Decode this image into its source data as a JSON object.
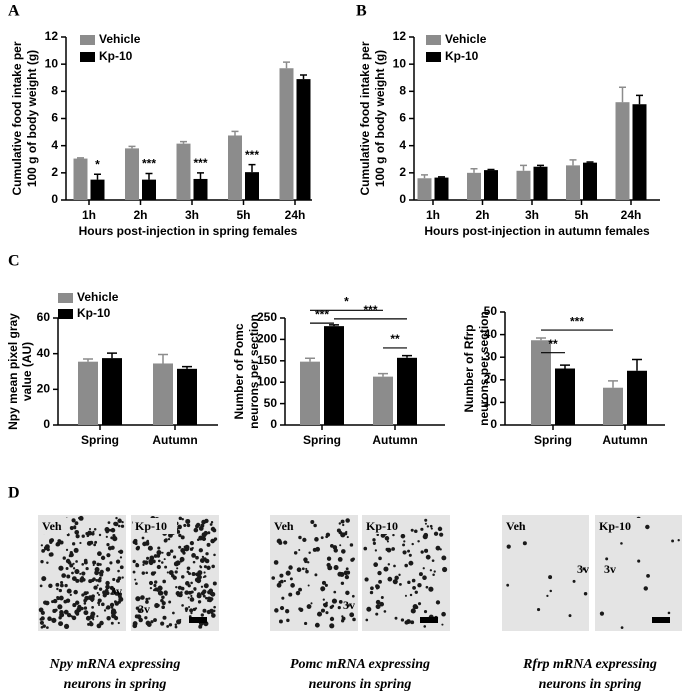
{
  "panel_labels": [
    "A",
    "B",
    "C",
    "D"
  ],
  "chart_data": [
    {
      "type": "bar",
      "ylabel_lines": [
        "Cumulative food intake per",
        "100 g of body weight (g)"
      ],
      "xlabel": "Hours post-injection in spring females",
      "categories": [
        "1h",
        "2h",
        "3h",
        "5h",
        "24h"
      ],
      "series": [
        {
          "name": "Vehicle",
          "color": "#8c8c8c",
          "values": [
            3.05,
            3.8,
            4.15,
            4.75,
            9.7
          ],
          "errors": [
            0.05,
            0.15,
            0.15,
            0.3,
            0.45
          ]
        },
        {
          "name": "Kp-10",
          "color": "#000000",
          "values": [
            1.5,
            1.5,
            1.55,
            2.05,
            8.9
          ],
          "errors": [
            0.4,
            0.45,
            0.45,
            0.55,
            0.3
          ],
          "significance": [
            "*",
            "***",
            "***",
            "***",
            null
          ]
        }
      ],
      "ylim": [
        0,
        12
      ],
      "yticks": [
        0,
        2,
        4,
        6,
        8,
        10,
        12
      ],
      "legend": "upper left"
    },
    {
      "type": "bar",
      "ylabel_lines": [
        "Cumulative food intake per",
        "100 g of body weight (g)"
      ],
      "xlabel": "Hours post-injection in autumn females",
      "categories": [
        "1h",
        "2h",
        "3h",
        "5h",
        "24h"
      ],
      "series": [
        {
          "name": "Vehicle",
          "color": "#8c8c8c",
          "values": [
            1.6,
            2.0,
            2.15,
            2.55,
            7.2
          ],
          "errors": [
            0.25,
            0.3,
            0.4,
            0.4,
            1.1
          ]
        },
        {
          "name": "Kp-10",
          "color": "#000000",
          "values": [
            1.65,
            2.2,
            2.45,
            2.75,
            7.05
          ],
          "errors": [
            0.05,
            0.05,
            0.1,
            0.05,
            0.65
          ]
        }
      ],
      "ylim": [
        0,
        12
      ],
      "yticks": [
        0,
        2,
        4,
        6,
        8,
        10,
        12
      ],
      "legend": "upper left"
    },
    {
      "type": "bar",
      "ylabel_lines": [
        "Npy mean pixel gray",
        "value (AU)"
      ],
      "categories": [
        "Spring",
        "Autumn"
      ],
      "series": [
        {
          "name": "Vehicle",
          "color": "#8c8c8c",
          "values": [
            35.5,
            34.5
          ],
          "errors": [
            1.5,
            5
          ]
        },
        {
          "name": "Kp-10",
          "color": "#000000",
          "values": [
            37.5,
            31.5
          ],
          "errors": [
            2.8,
            1.2
          ]
        }
      ],
      "ylim": [
        0,
        60
      ],
      "yticks": [
        0,
        20,
        40,
        60
      ],
      "legend": "upper left"
    },
    {
      "type": "bar",
      "ylabel_lines": [
        "Number of Pomc",
        "neurons per section"
      ],
      "categories": [
        "Spring",
        "Autumn"
      ],
      "series": [
        {
          "name": "Vehicle",
          "color": "#8c8c8c",
          "values": [
            148,
            113
          ],
          "errors": [
            8,
            7
          ]
        },
        {
          "name": "Kp-10",
          "color": "#000000",
          "values": [
            231,
            157
          ],
          "errors": [
            3,
            5
          ]
        }
      ],
      "ylim": [
        0,
        250
      ],
      "yticks": [
        0,
        50,
        100,
        150,
        200,
        250
      ],
      "brackets": [
        {
          "text": "***",
          "from": [
            0,
            0
          ],
          "to": [
            0,
            1
          ],
          "y": 238
        },
        {
          "text": "*",
          "from": [
            0,
            0
          ],
          "to": [
            1,
            0
          ],
          "y": 268
        },
        {
          "text": "***",
          "from": [
            0,
            1
          ],
          "to": [
            1,
            1
          ],
          "y": 248
        },
        {
          "text": "**",
          "from": [
            1,
            0
          ],
          "to": [
            1,
            1
          ],
          "y": 180
        }
      ]
    },
    {
      "type": "bar",
      "ylabel_lines": [
        "Number of Rfrp",
        "neurons per section"
      ],
      "categories": [
        "Spring",
        "Autumn"
      ],
      "series": [
        {
          "name": "Vehicle",
          "color": "#8c8c8c",
          "values": [
            37.5,
            16.5
          ],
          "errors": [
            1,
            3
          ]
        },
        {
          "name": "Kp-10",
          "color": "#000000",
          "values": [
            25,
            24
          ],
          "errors": [
            1.5,
            5
          ]
        }
      ],
      "ylim": [
        0,
        50
      ],
      "yticks": [
        0,
        10,
        20,
        30,
        40,
        50
      ],
      "brackets": [
        {
          "text": "**",
          "from": [
            0,
            0
          ],
          "to": [
            0,
            1
          ],
          "y": 32
        },
        {
          "text": "***",
          "from": [
            0,
            0
          ],
          "to": [
            1,
            0
          ],
          "y": 42
        }
      ]
    }
  ],
  "micrographs": [
    {
      "caption_lines": [
        "Npy mRNA expressing",
        "neurons in spring"
      ],
      "images": [
        {
          "label": "Veh",
          "ventricle": "3v"
        },
        {
          "label": "Kp-10",
          "ventricle": "3v"
        }
      ]
    },
    {
      "caption_lines": [
        "Pomc mRNA expressing",
        "neurons in spring"
      ],
      "images": [
        {
          "label": "Veh",
          "ventricle": "3v"
        },
        {
          "label": "Kp-10"
        }
      ]
    },
    {
      "caption_lines": [
        "Rfrp mRNA expressing",
        "neurons in spring"
      ],
      "images": [
        {
          "label": "Veh",
          "ventricle": "3v"
        },
        {
          "label": "Kp-10",
          "ventricle": "3v"
        }
      ]
    }
  ]
}
